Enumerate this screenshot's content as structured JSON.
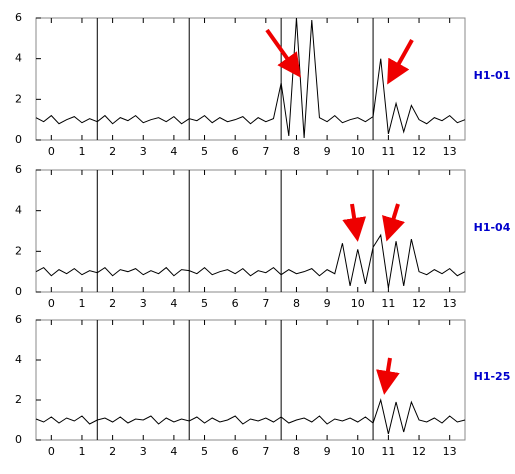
{
  "chart_data": [
    {
      "type": "line",
      "title": "H1-01",
      "xlim": [
        -0.5,
        13.5
      ],
      "ylim": [
        0,
        6
      ],
      "xticks": [
        0,
        1,
        2,
        3,
        4,
        5,
        6,
        7,
        8,
        9,
        10,
        11,
        12,
        13
      ],
      "yticks": [
        0,
        2,
        4,
        6
      ],
      "grid_x": [
        1.5,
        4.5,
        7.5,
        10.5
      ],
      "color": "#000000",
      "label_color": "#0000cc",
      "x": [
        -0.5,
        -0.25,
        0,
        0.25,
        0.5,
        0.75,
        1,
        1.25,
        1.5,
        1.75,
        2,
        2.25,
        2.5,
        2.75,
        3,
        3.25,
        3.5,
        3.75,
        4,
        4.25,
        4.5,
        4.75,
        5,
        5.25,
        5.5,
        5.75,
        6,
        6.25,
        6.5,
        6.75,
        7,
        7.25,
        7.5,
        7.75,
        8,
        8.25,
        8.5,
        8.75,
        9,
        9.25,
        9.5,
        9.75,
        10,
        10.25,
        10.5,
        10.75,
        11,
        11.25,
        11.5,
        11.75,
        12,
        12.25,
        12.5,
        12.75,
        13,
        13.25,
        13.5
      ],
      "values": [
        1.1,
        0.9,
        1.2,
        0.8,
        1.0,
        1.15,
        0.85,
        1.05,
        0.9,
        1.2,
        0.8,
        1.1,
        0.95,
        1.2,
        0.85,
        1.0,
        1.1,
        0.9,
        1.15,
        0.8,
        1.05,
        0.95,
        1.2,
        0.85,
        1.1,
        0.9,
        1.0,
        1.15,
        0.8,
        1.1,
        0.9,
        1.05,
        2.8,
        0.2,
        6,
        0.1,
        5.9,
        1.1,
        0.9,
        1.2,
        0.85,
        1.0,
        1.1,
        0.9,
        1.15,
        4.0,
        0.3,
        1.8,
        0.4,
        1.7,
        1.0,
        0.8,
        1.1,
        0.95,
        1.2,
        0.85,
        1.0
      ]
    },
    {
      "type": "line",
      "title": "H1-04",
      "xlim": [
        -0.5,
        13.5
      ],
      "ylim": [
        0,
        6
      ],
      "xticks": [
        0,
        1,
        2,
        3,
        4,
        5,
        6,
        7,
        8,
        9,
        10,
        11,
        12,
        13
      ],
      "yticks": [
        0,
        2,
        4,
        6
      ],
      "grid_x": [
        1.5,
        4.5,
        7.5,
        10.5
      ],
      "color": "#000000",
      "label_color": "#0000cc",
      "x": [
        -0.5,
        -0.25,
        0,
        0.25,
        0.5,
        0.75,
        1,
        1.25,
        1.5,
        1.75,
        2,
        2.25,
        2.5,
        2.75,
        3,
        3.25,
        3.5,
        3.75,
        4,
        4.25,
        4.5,
        4.75,
        5,
        5.25,
        5.5,
        5.75,
        6,
        6.25,
        6.5,
        6.75,
        7,
        7.25,
        7.5,
        7.75,
        8,
        8.25,
        8.5,
        8.75,
        9,
        9.25,
        9.5,
        9.75,
        10,
        10.25,
        10.5,
        10.75,
        11,
        11.25,
        11.5,
        11.75,
        12,
        12.25,
        12.5,
        12.75,
        13,
        13.25,
        13.5
      ],
      "values": [
        1.0,
        1.2,
        0.8,
        1.1,
        0.9,
        1.15,
        0.85,
        1.05,
        0.95,
        1.2,
        0.8,
        1.1,
        1.0,
        1.15,
        0.85,
        1.05,
        0.9,
        1.2,
        0.8,
        1.1,
        1.05,
        0.9,
        1.2,
        0.85,
        1.0,
        1.1,
        0.9,
        1.15,
        0.8,
        1.05,
        0.95,
        1.2,
        0.85,
        1.1,
        0.9,
        1.0,
        1.15,
        0.8,
        1.1,
        0.9,
        2.4,
        0.3,
        2.1,
        0.4,
        2.2,
        2.8,
        0.2,
        2.5,
        0.3,
        2.6,
        1.0,
        0.85,
        1.1,
        0.9,
        1.15,
        0.8,
        1.0
      ]
    },
    {
      "type": "line",
      "title": "H1-25",
      "xlim": [
        -0.5,
        13.5
      ],
      "ylim": [
        0,
        6
      ],
      "xticks": [
        0,
        1,
        2,
        3,
        4,
        5,
        6,
        7,
        8,
        9,
        10,
        11,
        12,
        13
      ],
      "yticks": [
        0,
        2,
        4,
        6
      ],
      "grid_x": [
        1.5,
        4.5,
        7.5,
        10.5
      ],
      "color": "#000000",
      "label_color": "#0000cc",
      "x": [
        -0.5,
        -0.25,
        0,
        0.25,
        0.5,
        0.75,
        1,
        1.25,
        1.5,
        1.75,
        2,
        2.25,
        2.5,
        2.75,
        3,
        3.25,
        3.5,
        3.75,
        4,
        4.25,
        4.5,
        4.75,
        5,
        5.25,
        5.5,
        5.75,
        6,
        6.25,
        6.5,
        6.75,
        7,
        7.25,
        7.5,
        7.75,
        8,
        8.25,
        8.5,
        8.75,
        9,
        9.25,
        9.5,
        9.75,
        10,
        10.25,
        10.5,
        10.75,
        11,
        11.25,
        11.5,
        11.75,
        12,
        12.25,
        12.5,
        12.75,
        13,
        13.25,
        13.5
      ],
      "values": [
        1.05,
        0.9,
        1.15,
        0.85,
        1.1,
        0.95,
        1.2,
        0.8,
        1.0,
        1.1,
        0.9,
        1.15,
        0.85,
        1.05,
        1.0,
        1.2,
        0.8,
        1.1,
        0.9,
        1.05,
        0.95,
        1.15,
        0.85,
        1.1,
        0.9,
        1.0,
        1.2,
        0.8,
        1.05,
        0.95,
        1.1,
        0.9,
        1.15,
        0.85,
        1.0,
        1.1,
        0.9,
        1.2,
        0.8,
        1.05,
        0.95,
        1.1,
        0.9,
        1.15,
        0.85,
        2.0,
        0.3,
        1.9,
        0.4,
        1.9,
        1.0,
        0.9,
        1.1,
        0.85,
        1.2,
        0.9,
        1.0
      ]
    }
  ]
}
